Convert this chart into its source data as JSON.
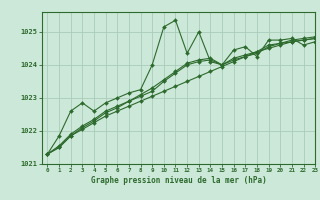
{
  "title": "Graphe pression niveau de la mer (hPa)",
  "background_color": "#cce8d8",
  "plot_bg_color": "#cce8d8",
  "line_color": "#2d6a2d",
  "grid_color": "#aaccbb",
  "xlim": [
    -0.5,
    23
  ],
  "ylim": [
    1021.0,
    1025.6
  ],
  "yticks": [
    1021,
    1022,
    1023,
    1024,
    1025
  ],
  "xticks": [
    0,
    1,
    2,
    3,
    4,
    5,
    6,
    7,
    8,
    9,
    10,
    11,
    12,
    13,
    14,
    15,
    16,
    17,
    18,
    19,
    20,
    21,
    22,
    23
  ],
  "series": [
    [
      1021.3,
      1021.85,
      1022.6,
      1022.85,
      1022.6,
      1022.85,
      1023.0,
      1023.15,
      1023.25,
      1024.0,
      1025.15,
      1025.35,
      1024.35,
      1025.0,
      1024.1,
      1024.0,
      1024.45,
      1024.55,
      1024.25,
      1024.75,
      1024.75,
      1024.8,
      1024.6,
      1024.7
    ],
    [
      1021.3,
      1021.5,
      1021.85,
      1022.05,
      1022.25,
      1022.45,
      1022.6,
      1022.75,
      1022.9,
      1023.05,
      1023.2,
      1023.35,
      1023.5,
      1023.65,
      1023.8,
      1023.95,
      1024.1,
      1024.25,
      1024.4,
      1024.5,
      1024.6,
      1024.7,
      1024.75,
      1024.8
    ],
    [
      1021.3,
      1021.5,
      1021.85,
      1022.1,
      1022.3,
      1022.55,
      1022.7,
      1022.9,
      1023.05,
      1023.2,
      1023.5,
      1023.75,
      1024.0,
      1024.1,
      1024.15,
      1024.0,
      1024.15,
      1024.25,
      1024.35,
      1024.55,
      1024.65,
      1024.7,
      1024.75,
      1024.8
    ],
    [
      1021.3,
      1021.55,
      1021.9,
      1022.15,
      1022.35,
      1022.6,
      1022.75,
      1022.9,
      1023.1,
      1023.3,
      1023.55,
      1023.8,
      1024.05,
      1024.15,
      1024.2,
      1024.0,
      1024.2,
      1024.3,
      1024.4,
      1024.6,
      1024.65,
      1024.75,
      1024.8,
      1024.85
    ]
  ],
  "figsize": [
    3.2,
    2.0
  ],
  "dpi": 100
}
